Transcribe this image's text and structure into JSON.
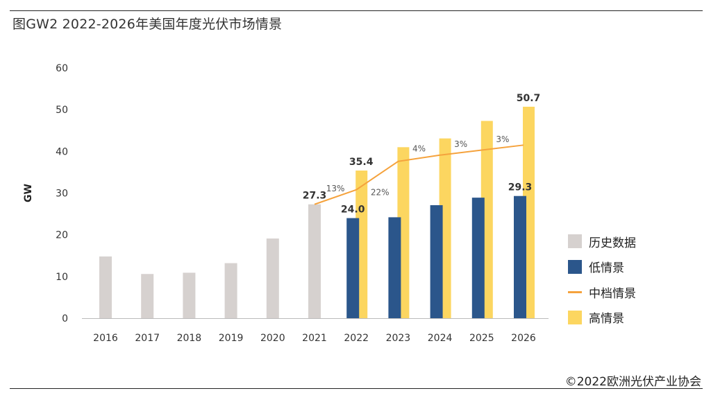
{
  "title": "图GW2 2022-2026年美国年度光伏市场情景",
  "credit": "©2022欧洲光伏产业协会",
  "colors": {
    "historical": "#d6d1cf",
    "low": "#2b568b",
    "mid": "#f5a23c",
    "high": "#fcd660"
  },
  "chart_data": {
    "type": "bar",
    "categories": [
      "2016",
      "2017",
      "2018",
      "2019",
      "2020",
      "2021",
      "2022",
      "2023",
      "2024",
      "2025",
      "2026"
    ],
    "ylabel": "GW",
    "ylim": [
      0,
      60
    ],
    "yticks": [
      0,
      10,
      20,
      30,
      40,
      50,
      60
    ],
    "grid": false,
    "legend_position": "right",
    "series": [
      {
        "name": "历史数据",
        "type": "bar",
        "values": [
          14.8,
          10.6,
          10.9,
          13.2,
          19.1,
          27.3,
          null,
          null,
          null,
          null,
          null
        ]
      },
      {
        "name": "低情景",
        "type": "bar",
        "values": [
          null,
          null,
          null,
          null,
          null,
          null,
          24.0,
          24.2,
          27.1,
          28.9,
          29.3
        ]
      },
      {
        "name": "中档情景",
        "type": "line",
        "values": [
          null,
          null,
          null,
          null,
          null,
          27.3,
          30.8,
          37.6,
          39.1,
          40.3,
          41.5
        ]
      },
      {
        "name": "高情景",
        "type": "bar",
        "values": [
          null,
          null,
          null,
          null,
          null,
          null,
          35.4,
          41.0,
          43.1,
          47.3,
          50.7
        ]
      }
    ],
    "data_labels": [
      {
        "category": "2021",
        "series": "历史数据",
        "text": "27.3"
      },
      {
        "category": "2022",
        "series": "高情景",
        "text": "35.4"
      },
      {
        "category": "2022",
        "series": "低情景",
        "text": "24.0"
      },
      {
        "category": "2026",
        "series": "高情景",
        "text": "50.7"
      },
      {
        "category": "2026",
        "series": "低情景",
        "text": "29.3"
      }
    ],
    "growth_labels": [
      {
        "from": "2021",
        "to": "2022",
        "text": "13%"
      },
      {
        "from": "2022",
        "to": "2023",
        "text": "22%"
      },
      {
        "from": "2023",
        "to": "2024",
        "text": "4%"
      },
      {
        "from": "2024",
        "to": "2025",
        "text": "3%"
      },
      {
        "from": "2025",
        "to": "2026",
        "text": "3%"
      }
    ]
  }
}
